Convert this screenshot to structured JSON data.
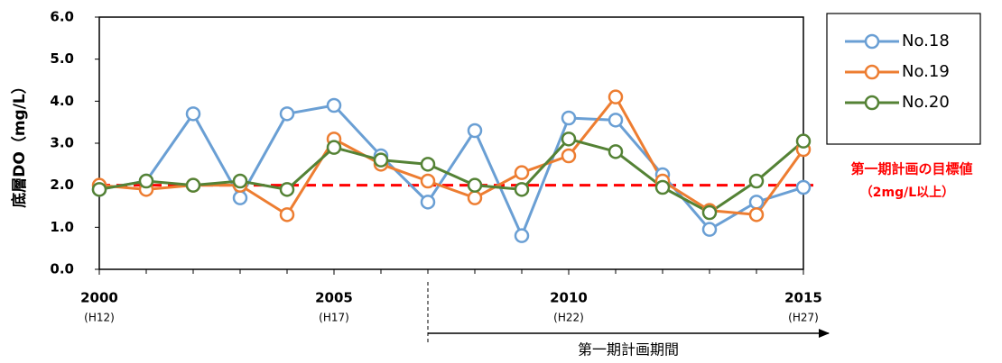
{
  "chart_data": {
    "type": "line",
    "y_label": "底層DO（mg/L）",
    "x": [
      2000,
      2001,
      2002,
      2003,
      2004,
      2005,
      2006,
      2007,
      2008,
      2009,
      2010,
      2011,
      2012,
      2013,
      2014,
      2015
    ],
    "xlim": [
      2000,
      2015
    ],
    "xticks": [
      2000,
      2005,
      2010,
      2015
    ],
    "xtick_sublabels": [
      "(H12)",
      "(H17)",
      "(H22)",
      "(H27)"
    ],
    "ylim": [
      0,
      6
    ],
    "yticks": [
      {
        "value": 0,
        "label": "0.0"
      },
      {
        "value": 1,
        "label": "1.0"
      },
      {
        "value": 2,
        "label": "2.0"
      },
      {
        "value": 3,
        "label": "3.0"
      },
      {
        "value": 4,
        "label": "4.0"
      },
      {
        "value": 5,
        "label": "5.0"
      },
      {
        "value": 6,
        "label": "6.0"
      }
    ],
    "legend": "top-right",
    "series": [
      {
        "name": "No.18",
        "color": "#6a9fd4",
        "values": [
          1.9,
          2.1,
          3.7,
          1.7,
          3.7,
          3.9,
          2.7,
          1.6,
          3.3,
          0.8,
          3.6,
          3.55,
          2.25,
          0.95,
          1.6,
          1.95
        ]
      },
      {
        "name": "No.19",
        "color": "#ed7d31",
        "values": [
          2.0,
          1.9,
          2.0,
          2.0,
          1.3,
          3.1,
          2.5,
          2.1,
          1.7,
          2.3,
          2.7,
          4.1,
          2.1,
          1.4,
          1.3,
          2.85
        ]
      },
      {
        "name": "No.20",
        "color": "#548235",
        "values": [
          1.9,
          2.1,
          2.0,
          2.1,
          1.9,
          2.9,
          2.6,
          2.5,
          2.0,
          1.9,
          3.1,
          2.8,
          1.95,
          1.35,
          2.1,
          3.05
        ]
      }
    ],
    "target": {
      "value": 2,
      "color": "#ff0000",
      "label": "第一期計画の目標値",
      "sublabel": "（2mg/L以上）"
    },
    "period": {
      "start": 2007,
      "label": "第一期計画期間"
    }
  }
}
